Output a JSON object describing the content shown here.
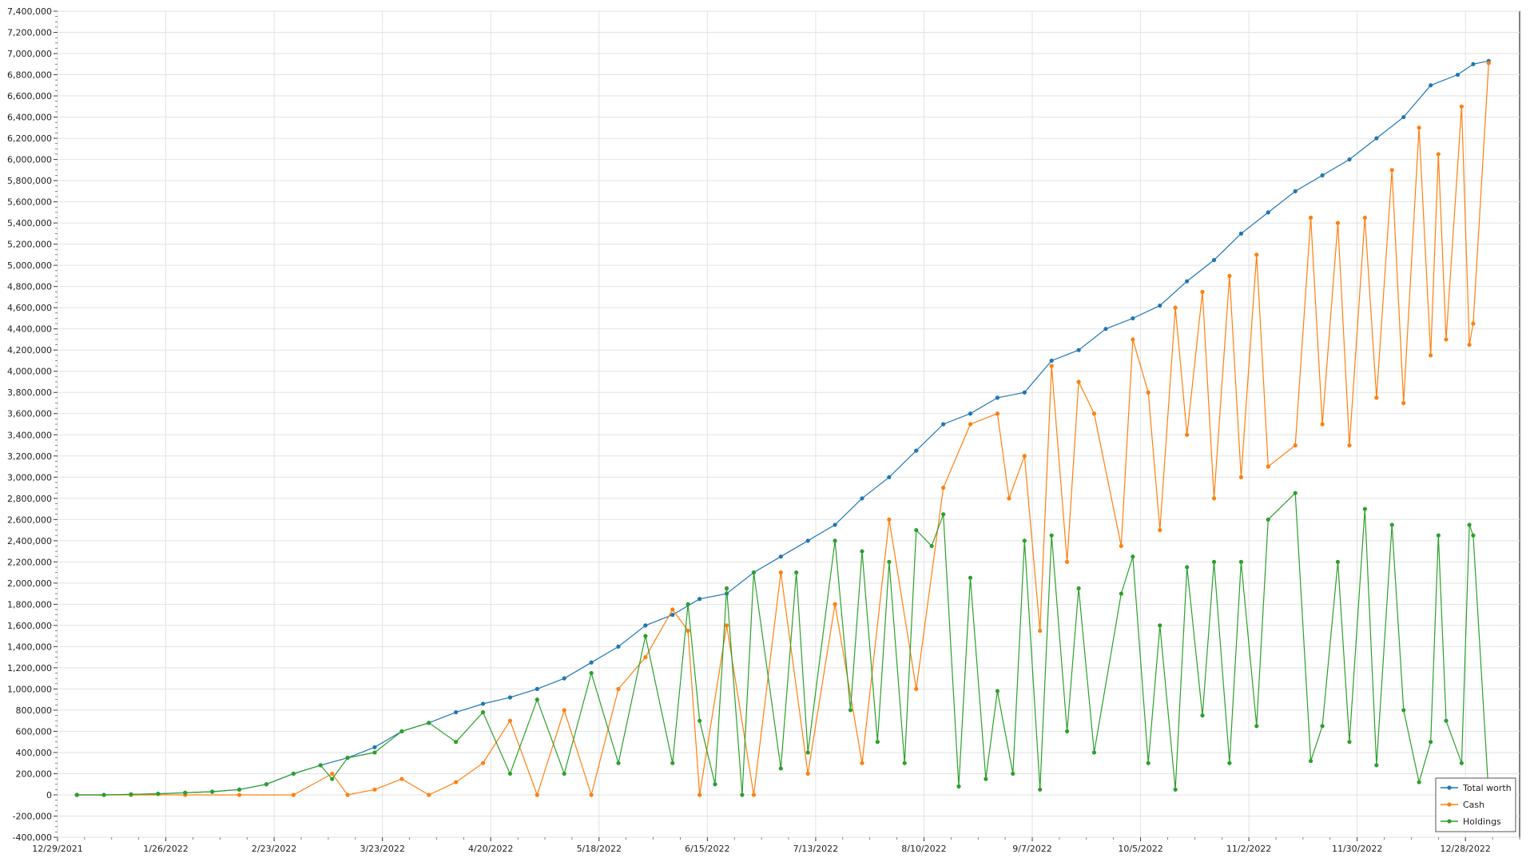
{
  "chart_data": {
    "type": "line",
    "title": "",
    "xlabel": "",
    "ylabel": "",
    "ylim": [
      -400000,
      7400000
    ],
    "xlim": [
      "2021-12-29",
      "2023-01-11"
    ],
    "grid": true,
    "legend_position": "bottom-right",
    "y_ticks": [
      "7,400,000",
      "7,200,000",
      "7,000,000",
      "6,800,000",
      "6,600,000",
      "6,400,000",
      "6,200,000",
      "6,000,000",
      "5,800,000",
      "5,600,000",
      "5,400,000",
      "5,200,000",
      "5,000,000",
      "4,800,000",
      "4,600,000",
      "4,400,000",
      "4,200,000",
      "4,000,000",
      "3,800,000",
      "3,600,000",
      "3,400,000",
      "3,200,000",
      "3,000,000",
      "2,800,000",
      "2,600,000",
      "2,400,000",
      "2,200,000",
      "2,000,000",
      "1,800,000",
      "1,600,000",
      "1,400,000",
      "1,200,000",
      "1,000,000",
      "800,000",
      "600,000",
      "400,000",
      "200,000",
      "0",
      "-200,000",
      "-400,000"
    ],
    "x_ticks": [
      "12/29/2021",
      "1/26/2022",
      "2/23/2022",
      "3/23/2022",
      "4/20/2022",
      "5/18/2022",
      "6/15/2022",
      "7/13/2022",
      "8/10/2022",
      "9/7/2022",
      "10/5/2022",
      "11/2/2022",
      "11/30/2022",
      "12/28/2022"
    ],
    "series": [
      {
        "name": "Total worth",
        "color": "#1f77b4",
        "points": [
          [
            "2022-01-03",
            0
          ],
          [
            "2022-01-10",
            0
          ],
          [
            "2022-01-17",
            5000
          ],
          [
            "2022-01-24",
            10000
          ],
          [
            "2022-01-31",
            20000
          ],
          [
            "2022-02-07",
            30000
          ],
          [
            "2022-02-14",
            50000
          ],
          [
            "2022-02-21",
            100000
          ],
          [
            "2022-02-28",
            200000
          ],
          [
            "2022-03-07",
            280000
          ],
          [
            "2022-03-14",
            350000
          ],
          [
            "2022-03-21",
            450000
          ],
          [
            "2022-03-28",
            600000
          ],
          [
            "2022-04-04",
            680000
          ],
          [
            "2022-04-11",
            780000
          ],
          [
            "2022-04-18",
            860000
          ],
          [
            "2022-04-25",
            920000
          ],
          [
            "2022-05-02",
            1000000
          ],
          [
            "2022-05-09",
            1100000
          ],
          [
            "2022-05-16",
            1250000
          ],
          [
            "2022-05-23",
            1400000
          ],
          [
            "2022-05-30",
            1600000
          ],
          [
            "2022-06-06",
            1700000
          ],
          [
            "2022-06-13",
            1850000
          ],
          [
            "2022-06-20",
            1900000
          ],
          [
            "2022-06-27",
            2100000
          ],
          [
            "2022-07-04",
            2250000
          ],
          [
            "2022-07-11",
            2400000
          ],
          [
            "2022-07-18",
            2550000
          ],
          [
            "2022-07-25",
            2800000
          ],
          [
            "2022-08-01",
            3000000
          ],
          [
            "2022-08-08",
            3250000
          ],
          [
            "2022-08-15",
            3500000
          ],
          [
            "2022-08-22",
            3600000
          ],
          [
            "2022-08-29",
            3750000
          ],
          [
            "2022-09-05",
            3800000
          ],
          [
            "2022-09-12",
            4100000
          ],
          [
            "2022-09-19",
            4200000
          ],
          [
            "2022-09-26",
            4400000
          ],
          [
            "2022-10-03",
            4500000
          ],
          [
            "2022-10-10",
            4620000
          ],
          [
            "2022-10-17",
            4850000
          ],
          [
            "2022-10-24",
            5050000
          ],
          [
            "2022-10-31",
            5300000
          ],
          [
            "2022-11-07",
            5500000
          ],
          [
            "2022-11-14",
            5700000
          ],
          [
            "2022-11-21",
            5850000
          ],
          [
            "2022-11-28",
            6000000
          ],
          [
            "2022-12-05",
            6200000
          ],
          [
            "2022-12-12",
            6400000
          ],
          [
            "2022-12-19",
            6700000
          ],
          [
            "2022-12-26",
            6800000
          ],
          [
            "2022-12-30",
            6900000
          ],
          [
            "2023-01-03",
            6930000
          ]
        ]
      },
      {
        "name": "Cash",
        "color": "#ff7f0e",
        "points": [
          [
            "2022-01-03",
            0
          ],
          [
            "2022-01-17",
            0
          ],
          [
            "2022-01-31",
            0
          ],
          [
            "2022-02-14",
            0
          ],
          [
            "2022-02-28",
            0
          ],
          [
            "2022-03-10",
            200000
          ],
          [
            "2022-03-14",
            0
          ],
          [
            "2022-03-21",
            50000
          ],
          [
            "2022-03-28",
            150000
          ],
          [
            "2022-04-04",
            0
          ],
          [
            "2022-04-11",
            120000
          ],
          [
            "2022-04-18",
            300000
          ],
          [
            "2022-04-25",
            700000
          ],
          [
            "2022-05-02",
            0
          ],
          [
            "2022-05-09",
            800000
          ],
          [
            "2022-05-16",
            0
          ],
          [
            "2022-05-23",
            1000000
          ],
          [
            "2022-05-30",
            1300000
          ],
          [
            "2022-06-06",
            1750000
          ],
          [
            "2022-06-10",
            1550000
          ],
          [
            "2022-06-13",
            0
          ],
          [
            "2022-06-20",
            1600000
          ],
          [
            "2022-06-27",
            0
          ],
          [
            "2022-07-04",
            2100000
          ],
          [
            "2022-07-11",
            200000
          ],
          [
            "2022-07-18",
            1800000
          ],
          [
            "2022-07-25",
            300000
          ],
          [
            "2022-08-01",
            2600000
          ],
          [
            "2022-08-08",
            1000000
          ],
          [
            "2022-08-15",
            2900000
          ],
          [
            "2022-08-22",
            3500000
          ],
          [
            "2022-08-29",
            3600000
          ],
          [
            "2022-09-01",
            2800000
          ],
          [
            "2022-09-05",
            3200000
          ],
          [
            "2022-09-09",
            1550000
          ],
          [
            "2022-09-12",
            4050000
          ],
          [
            "2022-09-16",
            2200000
          ],
          [
            "2022-09-19",
            3900000
          ],
          [
            "2022-09-23",
            3600000
          ],
          [
            "2022-09-30",
            2350000
          ],
          [
            "2022-10-03",
            4300000
          ],
          [
            "2022-10-07",
            3800000
          ],
          [
            "2022-10-10",
            2500000
          ],
          [
            "2022-10-14",
            4600000
          ],
          [
            "2022-10-17",
            3400000
          ],
          [
            "2022-10-21",
            4750000
          ],
          [
            "2022-10-24",
            2800000
          ],
          [
            "2022-10-28",
            4900000
          ],
          [
            "2022-10-31",
            3000000
          ],
          [
            "2022-11-04",
            5100000
          ],
          [
            "2022-11-07",
            3100000
          ],
          [
            "2022-11-14",
            3300000
          ],
          [
            "2022-11-18",
            5450000
          ],
          [
            "2022-11-21",
            3500000
          ],
          [
            "2022-11-25",
            5400000
          ],
          [
            "2022-11-28",
            3300000
          ],
          [
            "2022-12-02",
            5450000
          ],
          [
            "2022-12-05",
            3750000
          ],
          [
            "2022-12-09",
            5900000
          ],
          [
            "2022-12-12",
            3700000
          ],
          [
            "2022-12-16",
            6300000
          ],
          [
            "2022-12-19",
            4150000
          ],
          [
            "2022-12-21",
            6050000
          ],
          [
            "2022-12-23",
            4300000
          ],
          [
            "2022-12-27",
            6500000
          ],
          [
            "2022-12-29",
            4250000
          ],
          [
            "2022-12-30",
            4450000
          ],
          [
            "2023-01-03",
            6910000
          ]
        ]
      },
      {
        "name": "Holdings",
        "color": "#2ca02c",
        "points": [
          [
            "2022-01-03",
            0
          ],
          [
            "2022-01-10",
            0
          ],
          [
            "2022-01-17",
            5000
          ],
          [
            "2022-01-24",
            10000
          ],
          [
            "2022-01-31",
            20000
          ],
          [
            "2022-02-07",
            30000
          ],
          [
            "2022-02-14",
            50000
          ],
          [
            "2022-02-21",
            100000
          ],
          [
            "2022-02-28",
            200000
          ],
          [
            "2022-03-07",
            280000
          ],
          [
            "2022-03-10",
            150000
          ],
          [
            "2022-03-14",
            350000
          ],
          [
            "2022-03-21",
            400000
          ],
          [
            "2022-03-28",
            600000
          ],
          [
            "2022-04-04",
            680000
          ],
          [
            "2022-04-11",
            500000
          ],
          [
            "2022-04-18",
            780000
          ],
          [
            "2022-04-25",
            200000
          ],
          [
            "2022-05-02",
            900000
          ],
          [
            "2022-05-09",
            200000
          ],
          [
            "2022-05-16",
            1150000
          ],
          [
            "2022-05-23",
            300000
          ],
          [
            "2022-05-30",
            1500000
          ],
          [
            "2022-06-06",
            300000
          ],
          [
            "2022-06-10",
            1800000
          ],
          [
            "2022-06-13",
            700000
          ],
          [
            "2022-06-17",
            100000
          ],
          [
            "2022-06-20",
            1950000
          ],
          [
            "2022-06-24",
            0
          ],
          [
            "2022-06-27",
            2100000
          ],
          [
            "2022-07-04",
            250000
          ],
          [
            "2022-07-08",
            2100000
          ],
          [
            "2022-07-11",
            400000
          ],
          [
            "2022-07-18",
            2400000
          ],
          [
            "2022-07-22",
            800000
          ],
          [
            "2022-07-25",
            2300000
          ],
          [
            "2022-07-29",
            500000
          ],
          [
            "2022-08-01",
            2200000
          ],
          [
            "2022-08-05",
            300000
          ],
          [
            "2022-08-08",
            2500000
          ],
          [
            "2022-08-12",
            2350000
          ],
          [
            "2022-08-15",
            2650000
          ],
          [
            "2022-08-19",
            80000
          ],
          [
            "2022-08-22",
            2050000
          ],
          [
            "2022-08-26",
            150000
          ],
          [
            "2022-08-29",
            980000
          ],
          [
            "2022-09-02",
            200000
          ],
          [
            "2022-09-05",
            2400000
          ],
          [
            "2022-09-09",
            50000
          ],
          [
            "2022-09-12",
            2450000
          ],
          [
            "2022-09-16",
            600000
          ],
          [
            "2022-09-19",
            1950000
          ],
          [
            "2022-09-23",
            400000
          ],
          [
            "2022-09-30",
            1900000
          ],
          [
            "2022-10-03",
            2250000
          ],
          [
            "2022-10-07",
            300000
          ],
          [
            "2022-10-10",
            1600000
          ],
          [
            "2022-10-14",
            50000
          ],
          [
            "2022-10-17",
            2150000
          ],
          [
            "2022-10-21",
            750000
          ],
          [
            "2022-10-24",
            2200000
          ],
          [
            "2022-10-28",
            300000
          ],
          [
            "2022-10-31",
            2200000
          ],
          [
            "2022-11-04",
            650000
          ],
          [
            "2022-11-07",
            2600000
          ],
          [
            "2022-11-14",
            2850000
          ],
          [
            "2022-11-18",
            320000
          ],
          [
            "2022-11-21",
            650000
          ],
          [
            "2022-11-25",
            2200000
          ],
          [
            "2022-11-28",
            500000
          ],
          [
            "2022-12-02",
            2700000
          ],
          [
            "2022-12-05",
            280000
          ],
          [
            "2022-12-09",
            2550000
          ],
          [
            "2022-12-12",
            800000
          ],
          [
            "2022-12-16",
            120000
          ],
          [
            "2022-12-19",
            500000
          ],
          [
            "2022-12-21",
            2450000
          ],
          [
            "2022-12-23",
            700000
          ],
          [
            "2022-12-27",
            300000
          ],
          [
            "2022-12-29",
            2550000
          ],
          [
            "2022-12-30",
            2450000
          ],
          [
            "2023-01-03",
            0
          ]
        ]
      }
    ]
  }
}
